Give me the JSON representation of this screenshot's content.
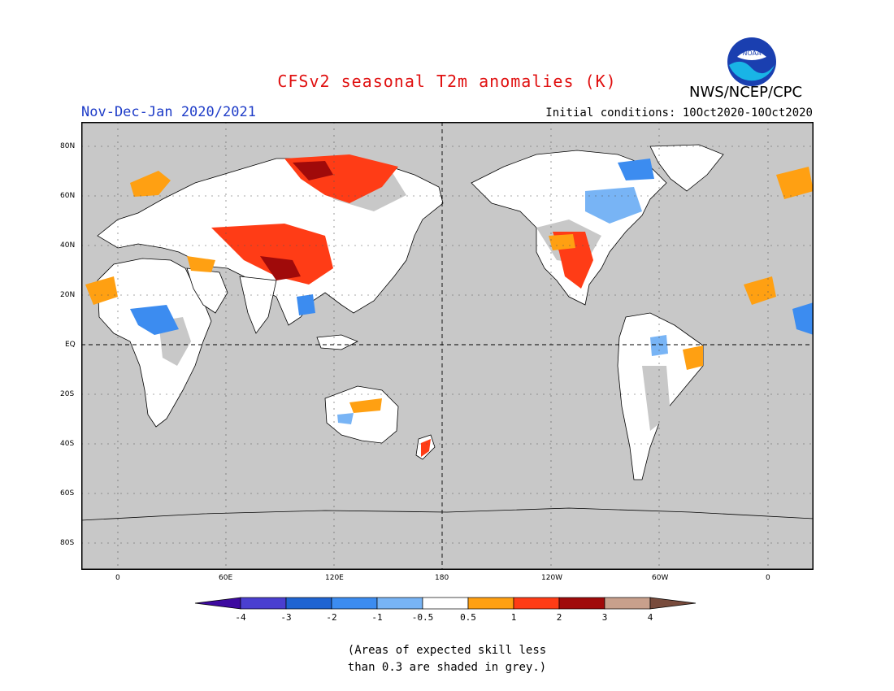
{
  "title": "CFSv2 seasonal T2m anomalies (K)",
  "subtitle": "Nov-Dec-Jan 2020/2021",
  "initial_conditions": "Initial conditions: 10Oct2020-10Oct2020",
  "agency": "NWS/NCEP/CPC",
  "logo_text": "NOAA",
  "lat_labels": [
    "80N",
    "60N",
    "40N",
    "20N",
    "EQ",
    "20S",
    "40S",
    "60S",
    "80S"
  ],
  "lon_labels": [
    "0",
    "60E",
    "120E",
    "180",
    "120W",
    "60W",
    "0"
  ],
  "colorbar": {
    "ticks": [
      "-4",
      "-3",
      "-2",
      "-1",
      "-0.5",
      "0.5",
      "1",
      "2",
      "3",
      "4"
    ],
    "colors": [
      "#3d0aa0",
      "#4a3fd0",
      "#1f64d2",
      "#3c8cf0",
      "#78b4f5",
      "#ffffff",
      "#ffa012",
      "#ff3c16",
      "#a00a0a",
      "#c8a08c",
      "#784b3c"
    ]
  },
  "note_line1": "(Areas of expected skill less",
  "note_line2": "than 0.3 are shaded in grey.)",
  "colors": {
    "ocean_grey": "#c8c8c8",
    "title_red": "#e01010",
    "subtitle_blue": "#1e3cc8"
  }
}
